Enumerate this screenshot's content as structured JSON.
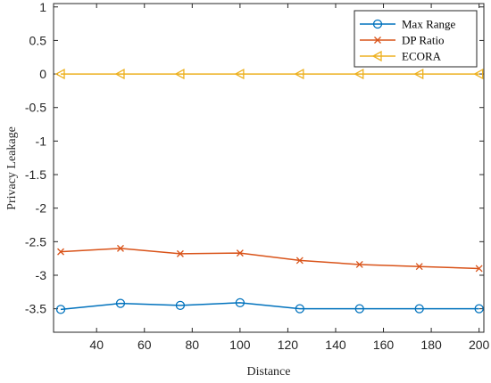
{
  "chart_data": {
    "type": "line",
    "xlabel": "Distance",
    "ylabel": "Privacy Leakage",
    "x": [
      25,
      50,
      75,
      100,
      125,
      150,
      175,
      200
    ],
    "xlim": [
      22,
      202
    ],
    "ylim": [
      -3.85,
      1.05
    ],
    "xticks": [
      40,
      60,
      80,
      100,
      120,
      140,
      160,
      180,
      200
    ],
    "yticks": [
      1,
      0.5,
      0,
      -0.5,
      -1,
      -1.5,
      -2,
      -2.5,
      -3,
      -3.5
    ],
    "grid": false,
    "legend_position": "top-right",
    "series": [
      {
        "name": "Max Range",
        "color": "#0072BD",
        "marker": "circle",
        "values": [
          -3.51,
          -3.42,
          -3.45,
          -3.41,
          -3.5,
          -3.5,
          -3.5,
          -3.5
        ]
      },
      {
        "name": "DP Ratio",
        "color": "#D95319",
        "marker": "x",
        "values": [
          -2.65,
          -2.6,
          -2.68,
          -2.67,
          -2.78,
          -2.84,
          -2.87,
          -2.9
        ]
      },
      {
        "name": "ECORA",
        "color": "#EDB120",
        "marker": "triangle-left",
        "values": [
          0,
          0,
          0,
          0,
          0,
          0,
          0,
          0
        ]
      }
    ]
  }
}
